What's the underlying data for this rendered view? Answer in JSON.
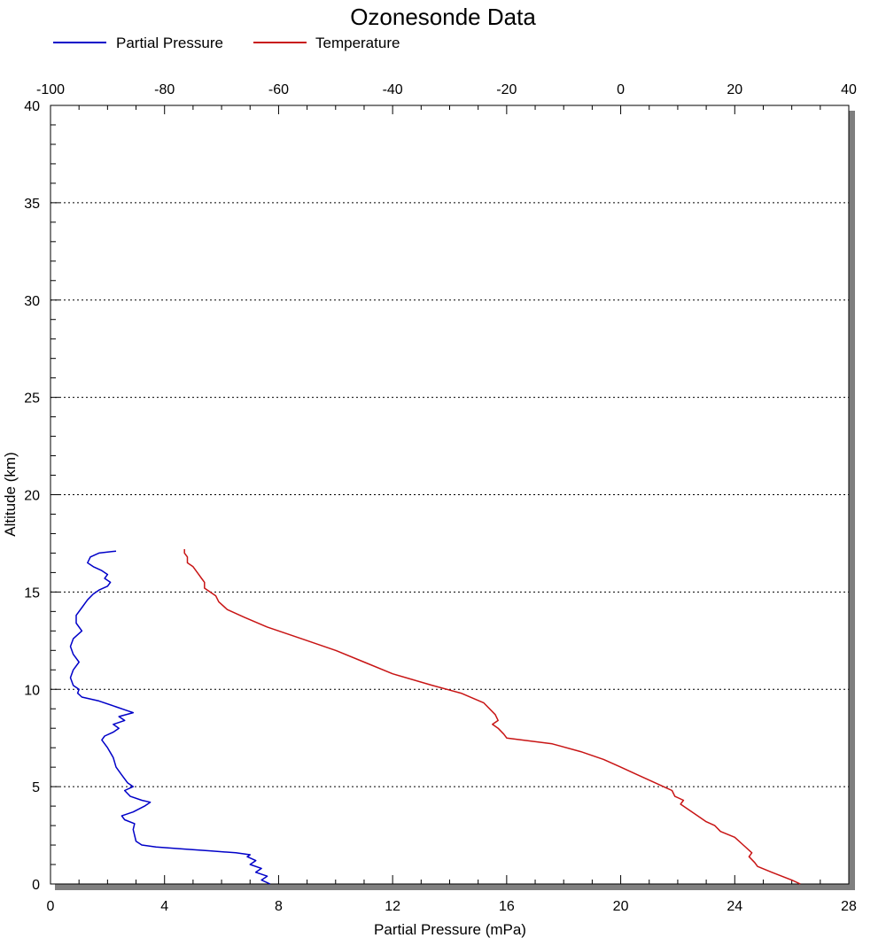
{
  "chart_data": {
    "type": "line",
    "title": "Ozonesonde Data",
    "legend_position": "top-left",
    "grid": "horizontal-dashed",
    "xlabel": "Partial Pressure (mPa)",
    "ylabel": "Altitude (km)",
    "xlim": [
      0,
      28
    ],
    "x2lim": [
      -100,
      40
    ],
    "ylim": [
      0,
      40
    ],
    "x_ticks": [
      "0",
      "4",
      "8",
      "12",
      "16",
      "20",
      "24",
      "28"
    ],
    "x2_ticks": [
      "-100",
      "-80",
      "-60",
      "-40",
      "-20",
      "0",
      "20",
      "40"
    ],
    "y_ticks": [
      "0",
      "5",
      "10",
      "15",
      "20",
      "25",
      "30",
      "35",
      "40"
    ],
    "series": [
      {
        "name": "Partial Pressure",
        "color": "#0000c8",
        "axis": "bottom",
        "points": [
          [
            7.7,
            0.0
          ],
          [
            7.4,
            0.2
          ],
          [
            7.6,
            0.4
          ],
          [
            7.2,
            0.6
          ],
          [
            7.4,
            0.8
          ],
          [
            7.0,
            1.0
          ],
          [
            7.2,
            1.2
          ],
          [
            6.9,
            1.4
          ],
          [
            7.0,
            1.5
          ],
          [
            6.5,
            1.6
          ],
          [
            5.6,
            1.7
          ],
          [
            4.6,
            1.8
          ],
          [
            3.7,
            1.9
          ],
          [
            3.2,
            2.0
          ],
          [
            3.0,
            2.2
          ],
          [
            2.95,
            2.5
          ],
          [
            2.9,
            2.8
          ],
          [
            2.95,
            3.1
          ],
          [
            2.6,
            3.3
          ],
          [
            2.5,
            3.5
          ],
          [
            2.9,
            3.7
          ],
          [
            3.3,
            4.0
          ],
          [
            3.5,
            4.2
          ],
          [
            3.2,
            4.3
          ],
          [
            2.8,
            4.5
          ],
          [
            2.6,
            4.8
          ],
          [
            2.9,
            5.0
          ],
          [
            2.7,
            5.2
          ],
          [
            2.5,
            5.6
          ],
          [
            2.3,
            6.0
          ],
          [
            2.2,
            6.5
          ],
          [
            2.0,
            7.0
          ],
          [
            1.8,
            7.4
          ],
          [
            1.9,
            7.6
          ],
          [
            2.2,
            7.8
          ],
          [
            2.4,
            8.0
          ],
          [
            2.2,
            8.2
          ],
          [
            2.6,
            8.4
          ],
          [
            2.4,
            8.6
          ],
          [
            2.9,
            8.8
          ],
          [
            2.7,
            8.9
          ],
          [
            2.3,
            9.1
          ],
          [
            1.7,
            9.4
          ],
          [
            1.1,
            9.6
          ],
          [
            0.95,
            9.8
          ],
          [
            1.0,
            10.0
          ],
          [
            0.8,
            10.2
          ],
          [
            0.7,
            10.6
          ],
          [
            0.8,
            11.0
          ],
          [
            1.0,
            11.4
          ],
          [
            0.8,
            11.8
          ],
          [
            0.7,
            12.2
          ],
          [
            0.8,
            12.6
          ],
          [
            1.1,
            13.0
          ],
          [
            0.9,
            13.4
          ],
          [
            0.9,
            13.8
          ],
          [
            1.1,
            14.2
          ],
          [
            1.3,
            14.6
          ],
          [
            1.5,
            14.9
          ],
          [
            1.7,
            15.1
          ],
          [
            2.0,
            15.3
          ],
          [
            2.1,
            15.5
          ],
          [
            1.9,
            15.7
          ],
          [
            2.0,
            15.9
          ],
          [
            1.8,
            16.1
          ],
          [
            1.5,
            16.3
          ],
          [
            1.3,
            16.5
          ],
          [
            1.4,
            16.8
          ],
          [
            1.7,
            17.0
          ],
          [
            2.3,
            17.1
          ]
        ]
      },
      {
        "name": "Temperature",
        "color": "#c81414",
        "axis": "top",
        "points": [
          [
            31.5,
            0.0
          ],
          [
            30.0,
            0.2
          ],
          [
            26.5,
            0.6
          ],
          [
            24.0,
            0.9
          ],
          [
            23.5,
            1.1
          ],
          [
            22.5,
            1.4
          ],
          [
            23.0,
            1.6
          ],
          [
            21.5,
            2.0
          ],
          [
            20.0,
            2.4
          ],
          [
            17.5,
            2.7
          ],
          [
            16.5,
            3.0
          ],
          [
            15.0,
            3.2
          ],
          [
            13.5,
            3.5
          ],
          [
            12.0,
            3.8
          ],
          [
            10.5,
            4.1
          ],
          [
            11.0,
            4.3
          ],
          [
            9.5,
            4.5
          ],
          [
            9.0,
            4.8
          ],
          [
            7.5,
            5.0
          ],
          [
            6.0,
            5.2
          ],
          [
            3.0,
            5.6
          ],
          [
            0.0,
            6.0
          ],
          [
            -3.0,
            6.4
          ],
          [
            -7.0,
            6.8
          ],
          [
            -12.0,
            7.2
          ],
          [
            -20.0,
            7.5
          ],
          [
            -20.5,
            7.7
          ],
          [
            -21.5,
            8.0
          ],
          [
            -22.5,
            8.2
          ],
          [
            -21.5,
            8.4
          ],
          [
            -22.0,
            8.7
          ],
          [
            -24.0,
            9.3
          ],
          [
            -28.0,
            9.8
          ],
          [
            -33.0,
            10.2
          ],
          [
            -40.0,
            10.8
          ],
          [
            -45.0,
            11.4
          ],
          [
            -50.0,
            12.0
          ],
          [
            -56.0,
            12.6
          ],
          [
            -62.0,
            13.2
          ],
          [
            -66.0,
            13.7
          ],
          [
            -69.0,
            14.1
          ],
          [
            -70.5,
            14.5
          ],
          [
            -71.0,
            14.8
          ],
          [
            -72.0,
            15.0
          ],
          [
            -73.0,
            15.2
          ],
          [
            -73.0,
            15.5
          ],
          [
            -73.5,
            15.7
          ],
          [
            -74.0,
            15.9
          ],
          [
            -74.5,
            16.1
          ],
          [
            -75.0,
            16.3
          ],
          [
            -76.0,
            16.5
          ],
          [
            -76.0,
            16.8
          ],
          [
            -76.5,
            17.0
          ],
          [
            -76.5,
            17.2
          ]
        ]
      }
    ]
  }
}
